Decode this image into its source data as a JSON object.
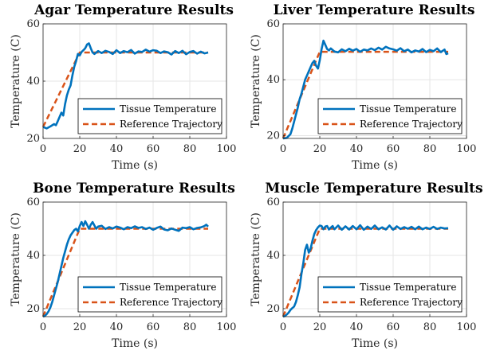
{
  "figure": {
    "colors": {
      "tissue": "#0072BD",
      "reference": "#D95319",
      "grid": "#e6e6e6",
      "axis": "#262626"
    }
  },
  "chart_data": [
    {
      "type": "line",
      "title": "Agar Temperature Results",
      "xlabel": "Time (s)",
      "ylabel": "Temperature (C)",
      "xlim": [
        0,
        100
      ],
      "ylim": [
        20,
        60
      ],
      "xticks": [
        "0",
        "20",
        "40",
        "60",
        "80",
        "100"
      ],
      "yticks": [
        "20",
        "40",
        "60"
      ],
      "grid": true,
      "legend_position": "bottom-right",
      "series": [
        {
          "name": "Tissue Temperature",
          "x": [
            0,
            2,
            4,
            6,
            7,
            8,
            9,
            10,
            11,
            12,
            13,
            14,
            15,
            16,
            17,
            18,
            19,
            20,
            21,
            22,
            23,
            24,
            25,
            26,
            27,
            28,
            30,
            32,
            34,
            36,
            38,
            40,
            42,
            44,
            46,
            48,
            50,
            52,
            54,
            56,
            58,
            60,
            62,
            64,
            66,
            68,
            70,
            72,
            74,
            76,
            78,
            80,
            82,
            84,
            86,
            88,
            90
          ],
          "y": [
            24,
            23.5,
            24.2,
            25,
            24.6,
            26,
            27.5,
            29,
            28,
            32,
            35,
            37,
            38.5,
            42,
            45,
            47,
            49.5,
            49,
            50.2,
            50.8,
            51.5,
            52.8,
            53.2,
            51.5,
            50,
            49.5,
            50.5,
            49.8,
            50.6,
            50.2,
            49.5,
            50.8,
            49.8,
            50.5,
            50.1,
            50.9,
            49.6,
            50.4,
            50.2,
            51,
            50.3,
            50.8,
            50.6,
            49.8,
            50.4,
            50.1,
            49.3,
            50.5,
            49.8,
            50.6,
            49.4,
            50.2,
            50.5,
            49.6,
            50.3,
            49.7,
            50
          ]
        },
        {
          "name": "Reference Trajectory",
          "x": [
            0,
            20,
            90
          ],
          "y": [
            24,
            50,
            50
          ]
        }
      ]
    },
    {
      "type": "line",
      "title": "Liver Temperature Results",
      "xlabel": "Time (s)",
      "ylabel": "Temperature (C)",
      "xlim": [
        0,
        100
      ],
      "ylim": [
        20,
        60
      ],
      "xticks": [
        "0",
        "20",
        "40",
        "60",
        "80",
        "100"
      ],
      "yticks": [
        "20",
        "40",
        "60"
      ],
      "grid": true,
      "legend_position": "bottom-right",
      "series": [
        {
          "name": "Tissue Temperature",
          "x": [
            0,
            2,
            4,
            5,
            6,
            7,
            8,
            9,
            10,
            11,
            12,
            13,
            14,
            15,
            16,
            17,
            18,
            19,
            20,
            21,
            22,
            23,
            24,
            25,
            26,
            28,
            30,
            32,
            34,
            36,
            38,
            40,
            42,
            44,
            46,
            48,
            50,
            52,
            54,
            56,
            58,
            60,
            62,
            64,
            66,
            68,
            70,
            72,
            74,
            76,
            78,
            80,
            82,
            84,
            86,
            88,
            89,
            90
          ],
          "y": [
            19,
            19.2,
            20.5,
            22.5,
            25,
            27.5,
            30,
            33,
            35,
            37.5,
            40,
            41.5,
            43,
            44.5,
            46,
            46.8,
            45,
            44,
            47,
            51,
            54,
            52.5,
            51,
            50.5,
            51.2,
            50.1,
            49.8,
            50.9,
            50.2,
            51.1,
            50.4,
            51,
            50,
            50.8,
            50.5,
            51.2,
            50.6,
            51.5,
            50.8,
            51.8,
            51.2,
            50.9,
            50.4,
            51.3,
            50.2,
            50.8,
            49.8,
            50.5,
            50.1,
            51,
            49.9,
            50.7,
            50.2,
            51.2,
            49.9,
            50.8,
            49.2,
            49.5
          ]
        },
        {
          "name": "Reference Trajectory",
          "x": [
            0,
            20,
            90
          ],
          "y": [
            19,
            50,
            50
          ]
        }
      ]
    },
    {
      "type": "line",
      "title": "Bone Temperature Results",
      "xlabel": "Time (s)",
      "ylabel": "Temperature (C)",
      "xlim": [
        0,
        100
      ],
      "ylim": [
        20,
        60
      ],
      "xticks": [
        "0",
        "20",
        "40",
        "60",
        "80",
        "100"
      ],
      "yticks": [
        "20",
        "40",
        "60"
      ],
      "grid": true,
      "legend_position": "bottom-right",
      "series": [
        {
          "name": "Tissue Temperature",
          "x": [
            0,
            1,
            2,
            3,
            4,
            5,
            6,
            7,
            8,
            9,
            10,
            11,
            12,
            13,
            14,
            15,
            16,
            17,
            18,
            19,
            20,
            21,
            22,
            23,
            24,
            25,
            26,
            27,
            28,
            29,
            30,
            32,
            34,
            36,
            38,
            40,
            42,
            44,
            46,
            48,
            50,
            52,
            54,
            56,
            58,
            60,
            62,
            64,
            66,
            68,
            70,
            72,
            74,
            76,
            78,
            80,
            82,
            84,
            86,
            88,
            89,
            90
          ],
          "y": [
            17,
            17.3,
            18,
            19,
            20.5,
            22.5,
            25,
            27.5,
            30,
            33,
            36,
            39,
            41.5,
            44,
            46,
            47.5,
            48.5,
            49.5,
            50,
            49,
            51,
            52.5,
            51,
            52.8,
            51.5,
            50,
            51.5,
            52.5,
            51.2,
            50,
            50.8,
            51.1,
            49.9,
            50.6,
            50.1,
            50.8,
            50.4,
            49.8,
            50.6,
            50.2,
            50.9,
            50.3,
            50.6,
            49.9,
            50.4,
            49.6,
            50.3,
            50.8,
            49.7,
            49.4,
            50.1,
            49.6,
            49.2,
            50.4,
            50.2,
            50.6,
            49.8,
            50.3,
            50.5,
            51,
            51.5,
            50.8
          ]
        },
        {
          "name": "Reference Trajectory",
          "x": [
            0,
            20,
            90
          ],
          "y": [
            17,
            50,
            50
          ]
        }
      ]
    },
    {
      "type": "line",
      "title": "Muscle Temperature Results",
      "xlabel": "Time (s)",
      "ylabel": "Temperature (C)",
      "xlim": [
        0,
        100
      ],
      "ylim": [
        20,
        60
      ],
      "xticks": [
        "0",
        "20",
        "40",
        "60",
        "80",
        "100"
      ],
      "yticks": [
        "20",
        "40",
        "60"
      ],
      "grid": true,
      "legend_position": "bottom-right",
      "series": [
        {
          "name": "Tissue Temperature",
          "x": [
            0,
            1,
            2,
            3,
            4,
            5,
            6,
            7,
            8,
            9,
            10,
            11,
            12,
            13,
            14,
            15,
            16,
            17,
            18,
            19,
            20,
            21,
            22,
            23,
            24,
            25,
            26,
            27,
            28,
            30,
            32,
            34,
            36,
            38,
            40,
            42,
            44,
            46,
            48,
            50,
            52,
            54,
            56,
            58,
            60,
            62,
            64,
            66,
            68,
            70,
            72,
            74,
            76,
            78,
            80,
            82,
            84,
            86,
            88,
            90
          ],
          "y": [
            17,
            17.2,
            17.8,
            18.5,
            19.5,
            20.2,
            20.8,
            22.5,
            25,
            28,
            33,
            37,
            42,
            44,
            41,
            42.5,
            45.5,
            48,
            49.5,
            50.5,
            51.2,
            51,
            49.8,
            50.8,
            51,
            49.7,
            50.4,
            51,
            49.8,
            51.2,
            49.6,
            50.9,
            49.7,
            51,
            49.8,
            51.3,
            49.6,
            50.8,
            49.9,
            51.2,
            49.8,
            50.5,
            49.7,
            51.2,
            49.6,
            50.9,
            49.9,
            50.6,
            50,
            50.7,
            49.8,
            50.8,
            49.8,
            50.4,
            49.9,
            50.7,
            49.9,
            50.4,
            50.1,
            50.2
          ]
        },
        {
          "name": "Reference Trajectory",
          "x": [
            0,
            20,
            90
          ],
          "y": [
            17,
            50,
            50
          ]
        }
      ]
    }
  ]
}
